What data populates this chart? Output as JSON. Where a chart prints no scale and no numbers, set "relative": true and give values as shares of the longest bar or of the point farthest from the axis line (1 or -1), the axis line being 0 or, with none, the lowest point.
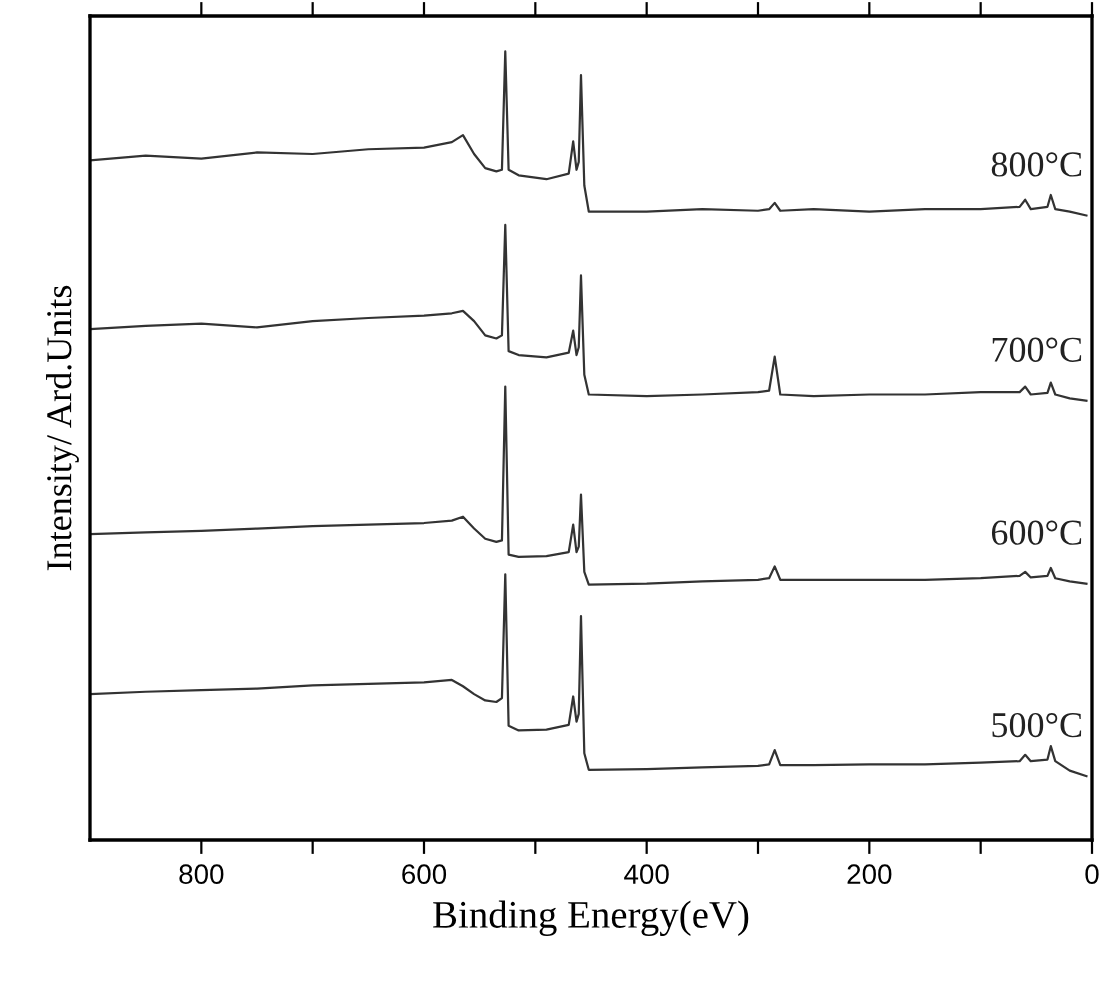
{
  "chart_data": {
    "type": "line",
    "relative": true,
    "xlabel": "Binding Energy(eV)",
    "ylabel": "Intensity/ Ard.Units",
    "x": [
      900,
      850,
      800,
      750,
      700,
      650,
      600,
      575,
      565,
      555,
      545,
      535,
      530,
      527,
      524,
      515,
      490,
      470,
      466,
      463,
      461,
      459,
      456,
      452,
      400,
      350,
      300,
      290,
      285,
      280,
      250,
      200,
      150,
      100,
      65,
      60,
      55,
      40,
      37,
      33,
      20,
      5
    ],
    "xlim": [
      900,
      0
    ],
    "xticks": [
      800,
      {
        "value": 700,
        "label": null
      },
      600,
      {
        "value": 500,
        "label": null
      },
      400,
      {
        "value": 300,
        "label": null
      },
      200,
      {
        "value": 100,
        "label": null
      },
      0
    ],
    "tick_labels": "x",
    "grid": false,
    "legend": false,
    "marker": "none",
    "line_style": "solid",
    "series": [
      {
        "name": "800°C",
        "color": "#333333",
        "values": [
          0.862,
          0.868,
          0.864,
          0.872,
          0.87,
          0.876,
          0.878,
          0.885,
          0.894,
          0.87,
          0.852,
          0.848,
          0.85,
          1.0,
          0.85,
          0.843,
          0.838,
          0.845,
          0.886,
          0.85,
          0.86,
          0.97,
          0.83,
          0.797,
          0.797,
          0.8,
          0.798,
          0.8,
          0.808,
          0.798,
          0.8,
          0.797,
          0.8,
          0.8,
          0.803,
          0.812,
          0.8,
          0.803,
          0.818,
          0.8,
          0.797,
          0.792
        ]
      },
      {
        "name": "700°C",
        "color": "#333333",
        "values": [
          0.648,
          0.652,
          0.655,
          0.65,
          0.658,
          0.662,
          0.665,
          0.668,
          0.671,
          0.658,
          0.64,
          0.636,
          0.64,
          0.78,
          0.62,
          0.615,
          0.612,
          0.618,
          0.646,
          0.615,
          0.625,
          0.716,
          0.59,
          0.565,
          0.563,
          0.565,
          0.568,
          0.57,
          0.613,
          0.565,
          0.563,
          0.565,
          0.565,
          0.568,
          0.568,
          0.575,
          0.565,
          0.567,
          0.58,
          0.565,
          0.56,
          0.557
        ]
      },
      {
        "name": "600°C",
        "color": "#333333",
        "values": [
          0.388,
          0.39,
          0.392,
          0.395,
          0.398,
          0.4,
          0.402,
          0.405,
          0.41,
          0.395,
          0.382,
          0.378,
          0.38,
          0.575,
          0.362,
          0.359,
          0.36,
          0.365,
          0.4,
          0.365,
          0.372,
          0.438,
          0.34,
          0.324,
          0.325,
          0.328,
          0.33,
          0.332,
          0.347,
          0.33,
          0.33,
          0.33,
          0.33,
          0.332,
          0.335,
          0.34,
          0.333,
          0.335,
          0.345,
          0.332,
          0.328,
          0.325
        ]
      },
      {
        "name": "500°C",
        "color": "#333333",
        "values": [
          0.185,
          0.188,
          0.19,
          0.192,
          0.196,
          0.198,
          0.2,
          0.203,
          0.195,
          0.185,
          0.177,
          0.175,
          0.18,
          0.337,
          0.145,
          0.139,
          0.14,
          0.146,
          0.182,
          0.15,
          0.16,
          0.284,
          0.11,
          0.089,
          0.09,
          0.092,
          0.094,
          0.096,
          0.114,
          0.095,
          0.095,
          0.096,
          0.096,
          0.098,
          0.1,
          0.108,
          0.1,
          0.102,
          0.119,
          0.1,
          0.088,
          0.081
        ]
      }
    ]
  }
}
